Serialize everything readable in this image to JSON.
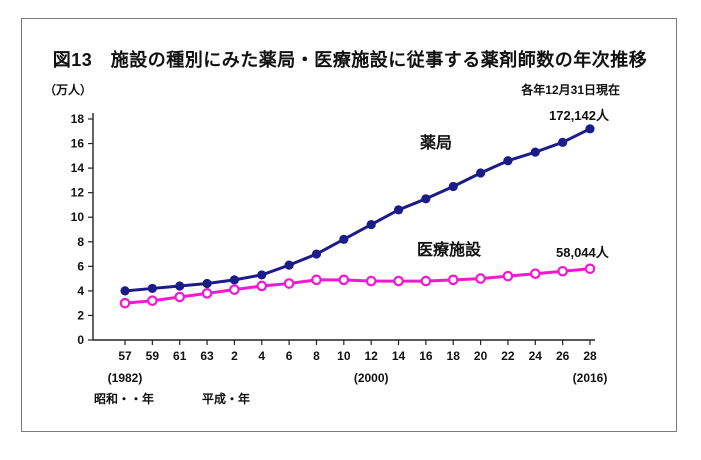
{
  "figure": {
    "title": "図13　施設の種別にみた薬局・医療施設に従事する薬剤師数の年次推移",
    "unit_label": "（万人）",
    "date_note": "各年12月31日現在"
  },
  "chart_data": {
    "type": "line",
    "x_tick_labels": [
      "57",
      "59",
      "61",
      "63",
      "2",
      "4",
      "6",
      "8",
      "10",
      "12",
      "14",
      "16",
      "18",
      "20",
      "22",
      "24",
      "26",
      "28"
    ],
    "x_sub_labels": [
      {
        "index": 0,
        "label": "(1982)"
      },
      {
        "index": 9,
        "label": "(2000)"
      },
      {
        "index": 17,
        "label": "(2016)"
      }
    ],
    "era_labels": [
      {
        "label": "昭和・・年"
      },
      {
        "label": "平成・年"
      }
    ],
    "y_ticks": [
      0,
      2,
      4,
      6,
      8,
      10,
      12,
      14,
      16,
      18
    ],
    "ylim": [
      0,
      18
    ],
    "grid": false,
    "series": [
      {
        "name": "薬局",
        "color": "#1b1b8a",
        "marker": "filled",
        "values": [
          4.0,
          4.2,
          4.4,
          4.6,
          4.9,
          5.3,
          6.1,
          7.0,
          8.2,
          9.4,
          10.6,
          11.5,
          12.5,
          13.6,
          14.6,
          15.3,
          16.1,
          17.2
        ],
        "end_annotation": "172,142人"
      },
      {
        "name": "医療施設",
        "color": "#f318d2",
        "marker": "open",
        "values": [
          3.0,
          3.2,
          3.5,
          3.8,
          4.1,
          4.4,
          4.6,
          4.9,
          4.9,
          4.8,
          4.8,
          4.8,
          4.9,
          5.0,
          5.2,
          5.4,
          5.6,
          5.8
        ],
        "end_annotation": "58,044人"
      }
    ]
  }
}
